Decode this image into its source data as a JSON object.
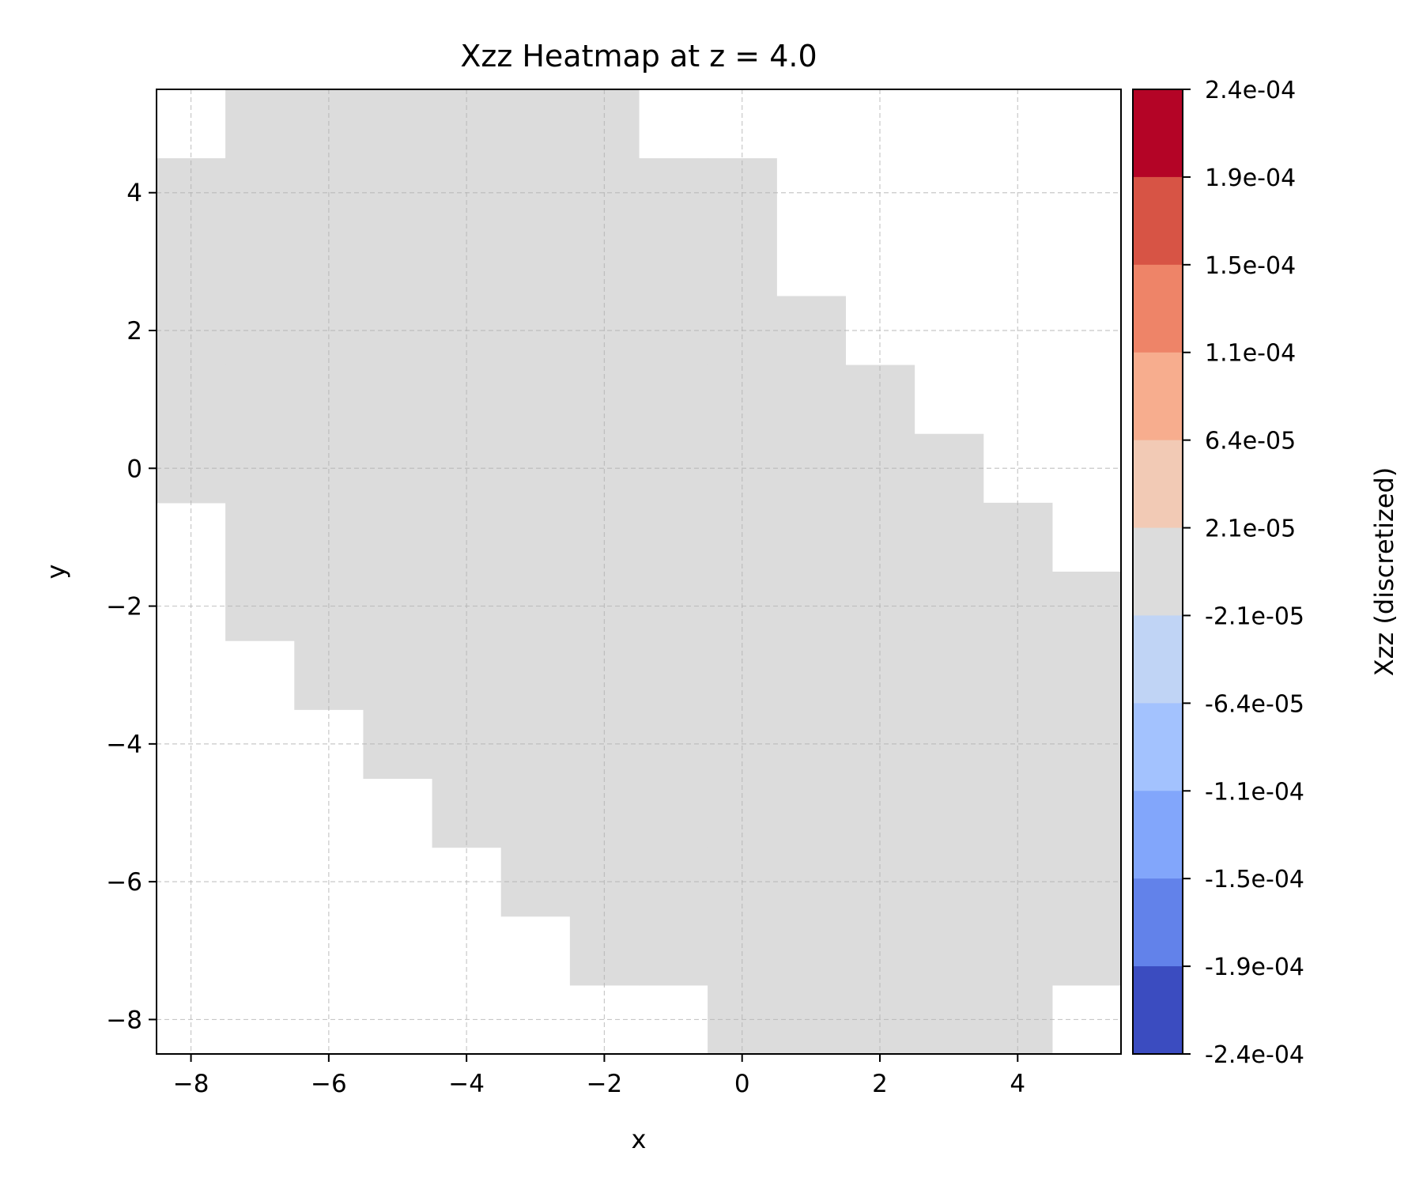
{
  "chart_data": {
    "type": "heatmap",
    "title": "Xzz Heatmap at z = 4.0",
    "xlabel": "x",
    "ylabel": "y",
    "xlim": [
      -8.5,
      5.5
    ],
    "ylim": [
      -8.5,
      5.5
    ],
    "xticks": [
      -8,
      -6,
      -4,
      -2,
      0,
      2,
      4
    ],
    "yticks": [
      -8,
      -6,
      -4,
      -2,
      0,
      2,
      4
    ],
    "xtick_labels": [
      "−8",
      "−6",
      "−4",
      "−2",
      "0",
      "2",
      "4"
    ],
    "ytick_labels": [
      "−8",
      "−6",
      "−4",
      "−2",
      "0",
      "2",
      "4"
    ],
    "grid": true,
    "cell_value_label": "2.1e-05 to -2.1e-05 (near zero)",
    "filled_color": "#dcdcdc",
    "cells_by_row": [
      {
        "y": 5,
        "x_range": [
          -7,
          -2
        ]
      },
      {
        "y": 4,
        "x_range": [
          -8,
          0
        ]
      },
      {
        "y": 3,
        "x_range": [
          -8,
          0
        ]
      },
      {
        "y": 2,
        "x_range": [
          -8,
          1
        ]
      },
      {
        "y": 1,
        "x_range": [
          -8,
          2
        ]
      },
      {
        "y": 0,
        "x_range": [
          -8,
          3
        ]
      },
      {
        "y": -1,
        "x_range": [
          -7,
          4
        ]
      },
      {
        "y": -2,
        "x_range": [
          -7,
          5
        ]
      },
      {
        "y": -3,
        "x_range": [
          -6,
          5
        ]
      },
      {
        "y": -4,
        "x_range": [
          -5,
          5
        ]
      },
      {
        "y": -5,
        "x_range": [
          -4,
          5
        ]
      },
      {
        "y": -6,
        "x_range": [
          -3,
          5
        ]
      },
      {
        "y": -7,
        "x_range": [
          -2,
          5
        ]
      },
      {
        "y": -8,
        "x_range": [
          0,
          4
        ]
      }
    ],
    "colorbar": {
      "label": "Xzz (discretized)",
      "ticks": [
        "2.4e-04",
        "1.9e-04",
        "1.5e-04",
        "1.1e-04",
        "6.4e-05",
        "2.1e-05",
        "-2.1e-05",
        "-6.4e-05",
        "-1.1e-04",
        "-1.5e-04",
        "-1.9e-04",
        "-2.4e-04"
      ],
      "colors_top_to_bottom": [
        "#b40426",
        "#d75445",
        "#ee8468",
        "#f7ad8e",
        "#f2cab5",
        "#dcdcdc",
        "#c0d4f5",
        "#a3c2fe",
        "#82a6fb",
        "#6282ea",
        "#3b4cc0"
      ]
    }
  }
}
